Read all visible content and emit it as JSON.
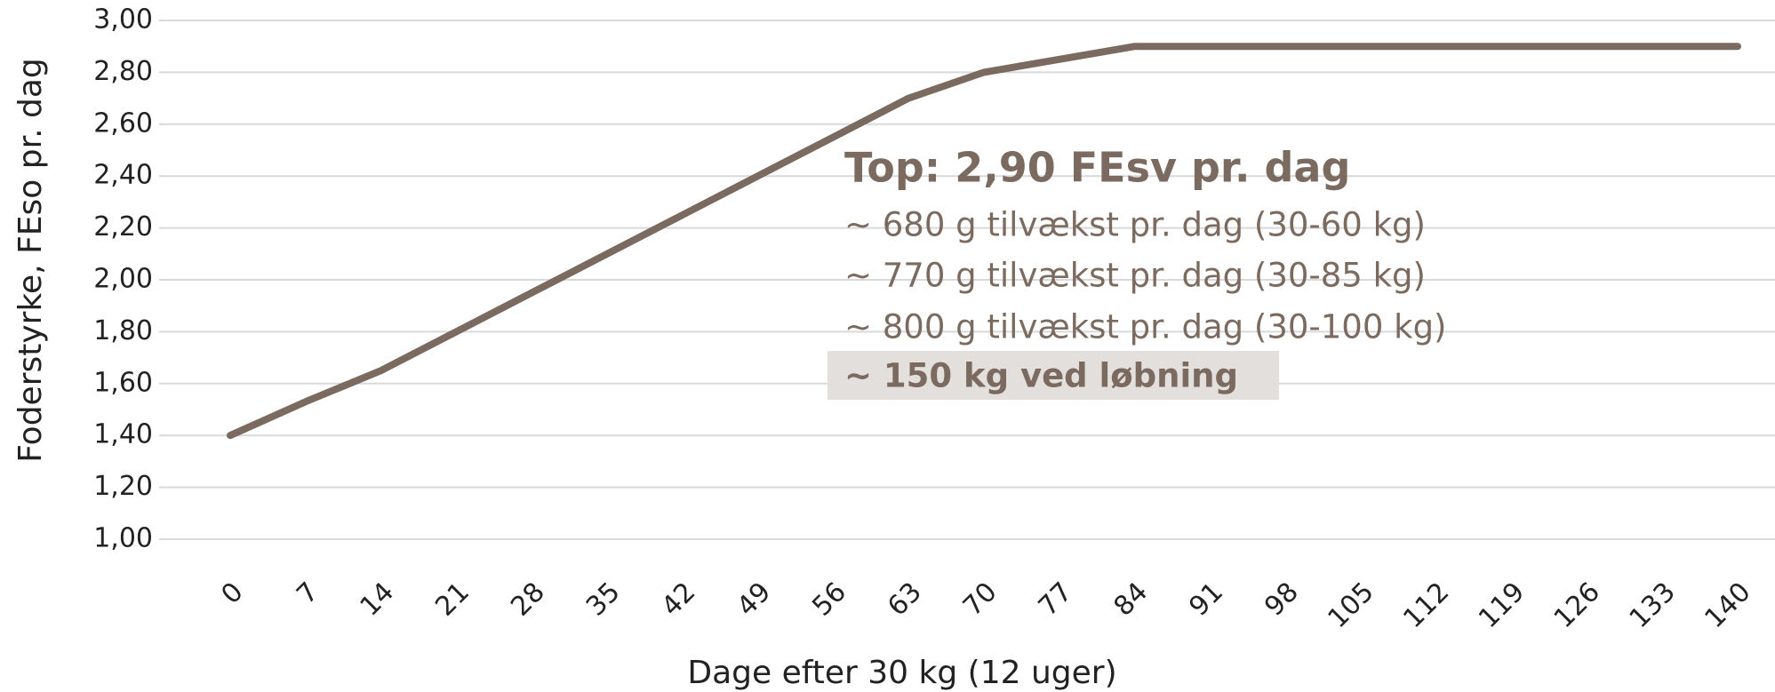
{
  "chart_data": {
    "type": "line",
    "xlabel": "Dage efter 30 kg (12 uger)",
    "ylabel": "Foderstyrke, FEso pr. dag",
    "categories": [
      "0",
      "7",
      "14",
      "21",
      "28",
      "35",
      "42",
      "49",
      "56",
      "63",
      "70",
      "77",
      "84",
      "91",
      "98",
      "105",
      "112",
      "119",
      "126",
      "133",
      "140"
    ],
    "series": [
      {
        "name": "Foderstyrke",
        "color": "#7a6a5f",
        "values": [
          1.4,
          1.53,
          1.65,
          1.8,
          1.95,
          2.1,
          2.25,
          2.4,
          2.55,
          2.7,
          2.8,
          2.85,
          2.9,
          2.9,
          2.9,
          2.9,
          2.9,
          2.9,
          2.9,
          2.9,
          2.9
        ]
      }
    ],
    "ylim": [
      1.0,
      3.0
    ],
    "yticks": [
      {
        "value": 1.0,
        "label": "1,00"
      },
      {
        "value": 1.2,
        "label": "1,20"
      },
      {
        "value": 1.4,
        "label": "1,40"
      },
      {
        "value": 1.6,
        "label": "1,60"
      },
      {
        "value": 1.8,
        "label": "1,80"
      },
      {
        "value": 2.0,
        "label": "2,00"
      },
      {
        "value": 2.2,
        "label": "2,20"
      },
      {
        "value": 2.4,
        "label": "2,40"
      },
      {
        "value": 2.6,
        "label": "2,60"
      },
      {
        "value": 2.8,
        "label": "2,80"
      },
      {
        "value": 3.0,
        "label": "3,00"
      }
    ],
    "grid": true,
    "annotations": {
      "title": "Top: 2,90 FEsv pr. dag",
      "lines": [
        "~ 680 g tilvækst pr. dag (30-60 kg)",
        "~ 770 g tilvækst pr. dag (30-85 kg)",
        "~ 800 g tilvækst pr. dag (30-100 kg)"
      ],
      "highlight": "~  150 kg ved løbning"
    }
  }
}
